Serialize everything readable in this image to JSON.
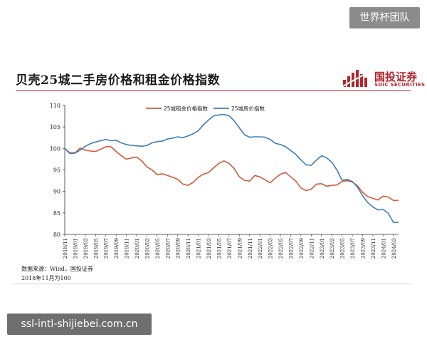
{
  "watermark_top": "世界杯团队",
  "watermark_bottom": "ssl-intl-shijiebei.com.cn",
  "slide_title": "贝壳25城二手房价格和租金价格指数",
  "logo": {
    "cn": "国投证券",
    "en": "SDIC SECURITIES"
  },
  "footnote": {
    "source": "数据来源：Wind，国投证券",
    "base": "2018年11月为100"
  },
  "colors": {
    "rent": "#d35a3c",
    "house": "#3f7fb0",
    "brand": "#b1262b"
  },
  "chart_data": {
    "type": "line",
    "title": "",
    "xlabel": "",
    "ylabel": "",
    "ylim": [
      80,
      110
    ],
    "yticks": [
      80,
      85,
      90,
      95,
      100,
      105,
      110
    ],
    "legend_position": "top-center",
    "x_tick_labels": [
      "2018/11",
      "2019/01",
      "2019/03",
      "2019/05",
      "2019/07",
      "2019/09",
      "2019/11",
      "2020/01",
      "2020/03",
      "2020/05",
      "2020/07",
      "2020/09",
      "2020/11",
      "2021/01",
      "2021/03",
      "2021/05",
      "2021/07",
      "2021/09",
      "2021/11",
      "2022/01",
      "2022/03",
      "2022/05",
      "2022/07",
      "2022/09",
      "2022/11",
      "2023/01",
      "2023/03",
      "2023/05",
      "2023/07",
      "2023/09",
      "2023/11",
      "2024/01",
      "2024/03"
    ],
    "x": [
      "2018-11",
      "2018-12",
      "2019-01",
      "2019-02",
      "2019-03",
      "2019-04",
      "2019-05",
      "2019-06",
      "2019-07",
      "2019-08",
      "2019-09",
      "2019-10",
      "2019-11",
      "2019-12",
      "2020-01",
      "2020-02",
      "2020-03",
      "2020-04",
      "2020-05",
      "2020-06",
      "2020-07",
      "2020-08",
      "2020-09",
      "2020-10",
      "2020-11",
      "2020-12",
      "2021-01",
      "2021-02",
      "2021-03",
      "2021-04",
      "2021-05",
      "2021-06",
      "2021-07",
      "2021-08",
      "2021-09",
      "2021-10",
      "2021-11",
      "2021-12",
      "2022-01",
      "2022-02",
      "2022-03",
      "2022-04",
      "2022-05",
      "2022-06",
      "2022-07",
      "2022-08",
      "2022-09",
      "2022-10",
      "2022-11",
      "2022-12",
      "2023-01",
      "2023-02",
      "2023-03",
      "2023-04",
      "2023-05",
      "2023-06",
      "2023-07",
      "2023-08",
      "2023-09",
      "2023-10",
      "2023-11",
      "2023-12",
      "2024-01",
      "2024-02",
      "2024-03",
      "2024-04"
    ],
    "series": [
      {
        "name": "25城租金价格指数",
        "color": "#d35a3c",
        "values": [
          100,
          99.0,
          99.0,
          100.1,
          99.6,
          99.4,
          99.3,
          99.8,
          100.4,
          100.4,
          99.3,
          98.3,
          97.5,
          97.8,
          98.0,
          97.1,
          95.7,
          95.0,
          93.9,
          94.1,
          93.7,
          93.3,
          92.8,
          91.7,
          91.4,
          92.1,
          93.3,
          94.0,
          94.4,
          95.5,
          96.5,
          97.1,
          96.5,
          95.3,
          93.4,
          92.6,
          92.4,
          93.7,
          93.4,
          92.7,
          92.0,
          93.1,
          94.0,
          94.4,
          93.4,
          92.4,
          90.8,
          90.2,
          90.5,
          91.7,
          91.8,
          91.2,
          91.4,
          91.5,
          92.3,
          92.5,
          92.2,
          91.3,
          89.8,
          88.8,
          88.4,
          88.0,
          88.9,
          88.7,
          87.9,
          87.9
        ]
      },
      {
        "name": "25城房价指数",
        "color": "#3f7fb0",
        "values": [
          100,
          98.8,
          98.9,
          99.6,
          100.5,
          101.1,
          101.5,
          101.8,
          102.1,
          101.8,
          101.9,
          101.3,
          100.9,
          100.7,
          100.6,
          100.5,
          100.7,
          101.3,
          101.6,
          101.7,
          102.2,
          102.4,
          102.7,
          102.5,
          102.9,
          103.4,
          104.1,
          105.5,
          106.6,
          107.6,
          107.8,
          107.9,
          107.6,
          106.4,
          104.8,
          103.2,
          102.6,
          102.7,
          102.7,
          102.6,
          102.1,
          101.2,
          100.9,
          100.4,
          99.5,
          98.6,
          97.3,
          96.2,
          96.1,
          97.3,
          98.3,
          97.8,
          96.8,
          95.0,
          92.6,
          92.8,
          92.3,
          91.0,
          89.0,
          87.4,
          86.4,
          85.7,
          85.8,
          84.9,
          82.8,
          82.8
        ]
      }
    ]
  }
}
